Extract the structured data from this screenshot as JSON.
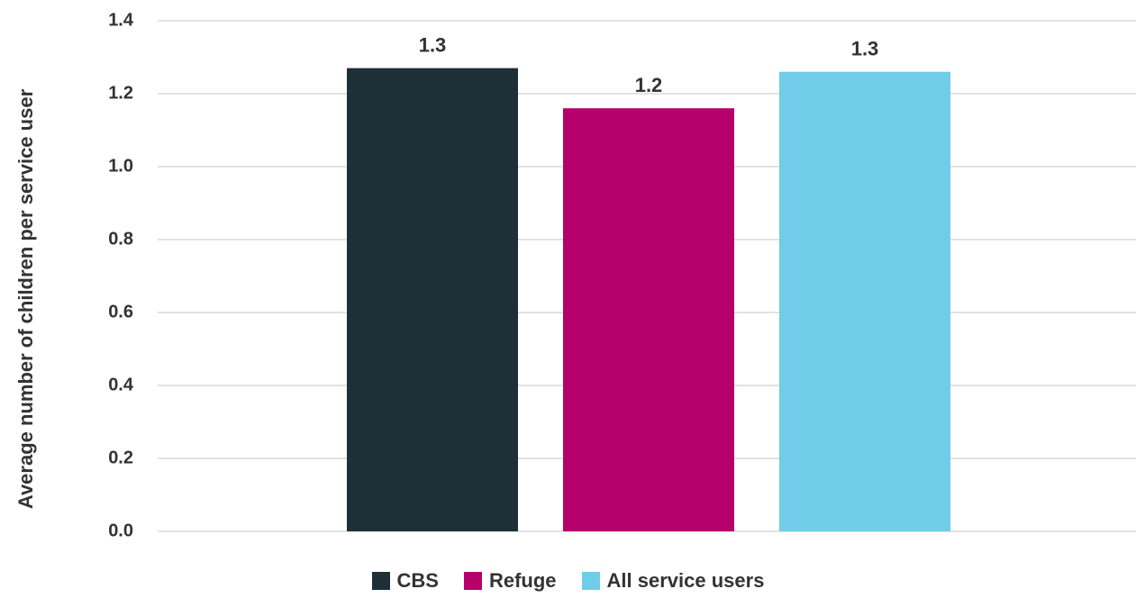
{
  "chart_data": {
    "type": "bar",
    "ylabel": "Average number of children per service user",
    "ylim": [
      0,
      1.4
    ],
    "yticks": [
      "0.0",
      "0.2",
      "0.4",
      "0.6",
      "0.8",
      "1.0",
      "1.2",
      "1.4"
    ],
    "grid": true,
    "legend_position": "bottom-center",
    "series": [
      {
        "name": "CBS",
        "value": 1.27,
        "label": "1.3",
        "color": "#1E2F37"
      },
      {
        "name": "Refuge",
        "value": 1.16,
        "label": "1.2",
        "color": "#B5006B"
      },
      {
        "name": "All service users",
        "value": 1.26,
        "label": "1.3",
        "color": "#70CCE8"
      }
    ]
  }
}
